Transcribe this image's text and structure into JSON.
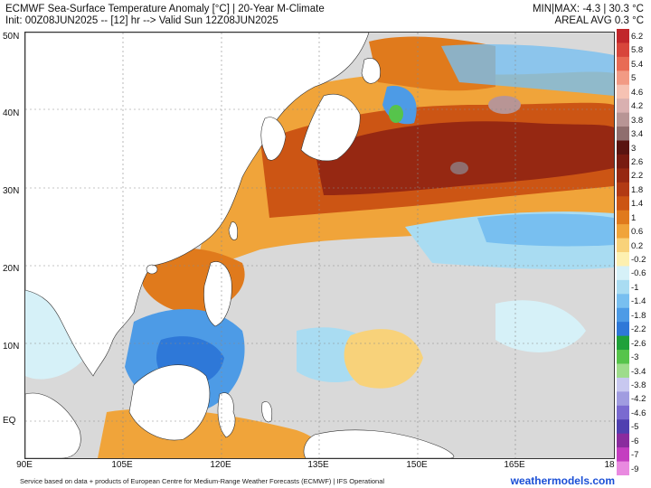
{
  "header": {
    "title": "ECMWF Sea-Surface Temperature Anomaly [°C] | 20-Year M-Climate",
    "init": "Init: 00Z08JUN2025 -- [12] hr --> Valid Sun 12Z08JUN2025",
    "minmax": "MIN|MAX: -4.3 | 30.3 °C",
    "areal": "AREAL AVG 0.3 °C"
  },
  "axes": {
    "lat_labels": [
      "50N",
      "40N",
      "30N",
      "20N",
      "10N",
      "EQ"
    ],
    "lon_labels": [
      "90E",
      "105E",
      "120E",
      "135E",
      "150E",
      "165E",
      "18"
    ]
  },
  "colorbar": {
    "labels": [
      "6.2",
      "5.8",
      "5.4",
      "5",
      "4.6",
      "4.2",
      "3.8",
      "3.4",
      "3",
      "2.6",
      "2.2",
      "1.8",
      "1.4",
      "1",
      "0.6",
      "0.2",
      "-0.2",
      "-0.6",
      "-1",
      "-1.4",
      "-1.8",
      "-2.2",
      "-2.6",
      "-3",
      "-3.4",
      "-3.8",
      "-4.2",
      "-4.6",
      "-5",
      "-6",
      "-7",
      "-9"
    ],
    "colors": [
      "#c1262b",
      "#d8453b",
      "#e86b55",
      "#f29a84",
      "#f6c2b3",
      "#d9b0b0",
      "#b89595",
      "#8f6e6e",
      "#5a1410",
      "#781b10",
      "#962812",
      "#b23a14",
      "#cc5514",
      "#e07a1c",
      "#f0a43a",
      "#f8d27a",
      "#fdf0b0",
      "#d6f1f8",
      "#a9dcf2",
      "#78bff0",
      "#4d9be6",
      "#2e78d8",
      "#1fa13a",
      "#56c44b",
      "#9edc8c",
      "#c8c8f0",
      "#a09ce0",
      "#7a6ad0",
      "#5040b0",
      "#8a2c9e",
      "#c43ec0",
      "#e98ae0"
    ]
  },
  "footer": {
    "credit": "Service based on data + products of European Centre for Medium-Range Weather Forecasts (ECMWF) | IFS Operational",
    "brand": "weathermodels.com"
  }
}
